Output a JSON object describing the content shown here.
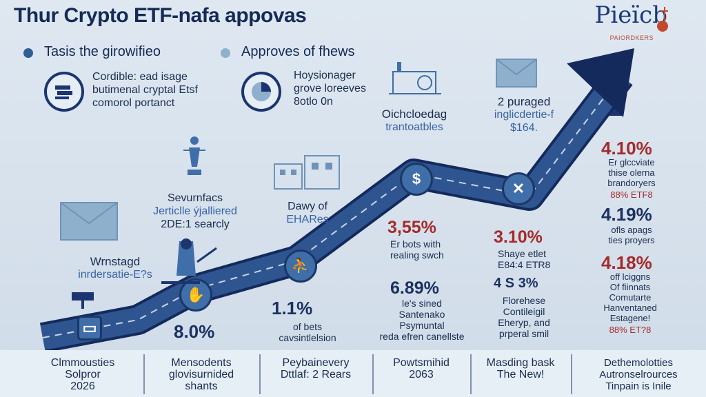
{
  "title": "Thur Crypto ETF-nafa appovas",
  "logo": {
    "name": "Pieïcb",
    "tagline": "PAIORDKERS"
  },
  "top_left": {
    "header": "Tasis the girowifieo",
    "lines": [
      "Cordible: ead isage",
      "butimenal cryptal Etsf",
      "comorol portanct"
    ]
  },
  "top_mid": {
    "header": "Approves of fhews",
    "lines": [
      "Hoysionager",
      "grove loreeves",
      "8otlo 0n"
    ]
  },
  "labels": {
    "wrnstagd": {
      "lines": [
        "Wrnstagd",
        "inrdersatie-E?s"
      ]
    },
    "sevurnfacs": {
      "lines": [
        "Sevurnfacs",
        "Jerticlle ýjalliered",
        "2DE:1 searcly"
      ]
    },
    "dawy": {
      "lines": [
        "Dawy of",
        "EHARes"
      ]
    },
    "oichcloedag": {
      "lines": [
        "Oichcloedag",
        "trantoatbles"
      ]
    },
    "purgaged": {
      "lines": [
        "2 puraged",
        "inglicdertie-f",
        "$164."
      ]
    }
  },
  "stats": {
    "p80": "8.0%",
    "p11": "1.1%",
    "p11_lines": [
      "of bets",
      "cavsintlelsion"
    ],
    "p355": "3,55%",
    "p355_lines": [
      "Er bots with",
      "realing swch"
    ],
    "p689": "6.89%",
    "p689_lines": [
      "le's sined",
      "Santenako",
      "Psymuntal",
      "reda efren canellste"
    ],
    "p310": "3.10%",
    "p310_lines": [
      "Shaye etlet",
      "E84:4 ETR8"
    ],
    "p4s": "4 S 3%",
    "p4s_lines": [
      "Florehese",
      "Contileigil",
      "Eheryp, and",
      "prperal smil"
    ],
    "p410": "4.10%",
    "p410_lines": [
      "Er glccviate",
      "thise olerna",
      "brandoryers",
      "88% ETF8"
    ],
    "p419": "4.19%",
    "p419_lines": [
      "ofls apags",
      "ties proyers"
    ],
    "p418": "4.18%",
    "p418_lines": [
      "off lciggns",
      "Of fiinnats",
      "Comutarte",
      "Hanventaned",
      "Estagene!",
      "88% ET?8"
    ]
  },
  "footer": [
    {
      "lines": [
        "Clmmousties",
        "Solpror",
        "2026"
      ]
    },
    {
      "lines": [
        "Mensodents",
        "glovisurnided",
        "shants"
      ]
    },
    {
      "lines": [
        "Peybainevery",
        "Dttlaf: 2 Rears"
      ]
    },
    {
      "lines": [
        "Powtsmihid",
        "2063"
      ]
    },
    {
      "lines": [
        "Masding bask",
        "The New!"
      ]
    },
    {
      "lines": [
        "Dethemolotties",
        "Autronselrources",
        "Tinpain is Inile"
      ]
    }
  ],
  "colors": {
    "accent": "#1c3570",
    "arrow": "#2f5590",
    "red": "#a42a2a",
    "background": "#dfe8f1"
  },
  "icons": [
    "envelope-icon",
    "hand-coins-icon",
    "building-icon",
    "dollar-icon",
    "x-icon",
    "person-icon"
  ]
}
